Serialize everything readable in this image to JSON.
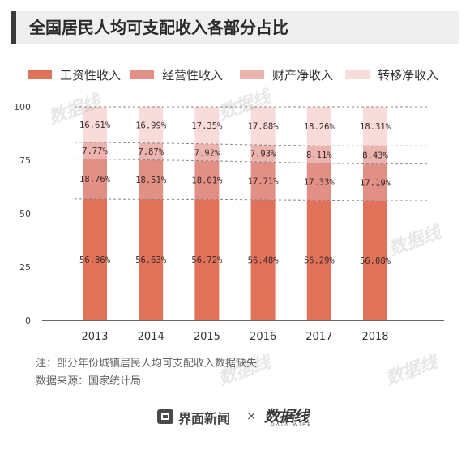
{
  "title": "全国居民人均可支配收入各部分占比",
  "colors": {
    "wage": "#e1725a",
    "business": "#e28f85",
    "property": "#ebb4ae",
    "transfer": "#f7dcda",
    "axis": "#333333",
    "gridline": "#888888"
  },
  "chart_data": {
    "type": "bar",
    "stacked": true,
    "categories": [
      "2013",
      "2014",
      "2015",
      "2016",
      "2017",
      "2018"
    ],
    "series": [
      {
        "name": "工资性收入",
        "values": [
          56.86,
          56.63,
          56.72,
          56.48,
          56.29,
          56.08
        ]
      },
      {
        "name": "经营性收入",
        "values": [
          18.76,
          18.51,
          18.01,
          17.71,
          17.33,
          17.19
        ]
      },
      {
        "name": "财产净收入",
        "values": [
          7.77,
          7.87,
          7.92,
          7.93,
          8.11,
          8.43
        ]
      },
      {
        "name": "转移净收入",
        "values": [
          16.61,
          16.99,
          17.35,
          17.88,
          18.26,
          18.31
        ]
      }
    ],
    "data_labels": [
      [
        "56.86%",
        "56.63%",
        "56.72%",
        "56.48%",
        "56.29%",
        "56.08%"
      ],
      [
        "18.76%",
        "18.51%",
        "18.01%",
        "17.71%",
        "17.33%",
        "17.19%"
      ],
      [
        "7.77%",
        "7.87%",
        "7.92%",
        "7.93%",
        "8.11%",
        "8.43%"
      ],
      [
        "16.61%",
        "16.99%",
        "17.35%",
        "17.88%",
        "18.26%",
        "18.31%"
      ]
    ],
    "yticks": [
      "0",
      "25",
      "50",
      "75",
      "100"
    ],
    "ylim": [
      0,
      100
    ],
    "legend_position": "top",
    "trend_lines": "dashed lines connecting segment boundaries"
  },
  "notes": {
    "note": "注：部分年份城镇居民人均可支配收入数据缺失",
    "source": "数据来源：国家统计局"
  },
  "footer": {
    "brand": "界面新闻",
    "separator": "×",
    "partner": "数据线",
    "partner_sub": "DATA WIRE"
  },
  "watermark_text": "数据线"
}
